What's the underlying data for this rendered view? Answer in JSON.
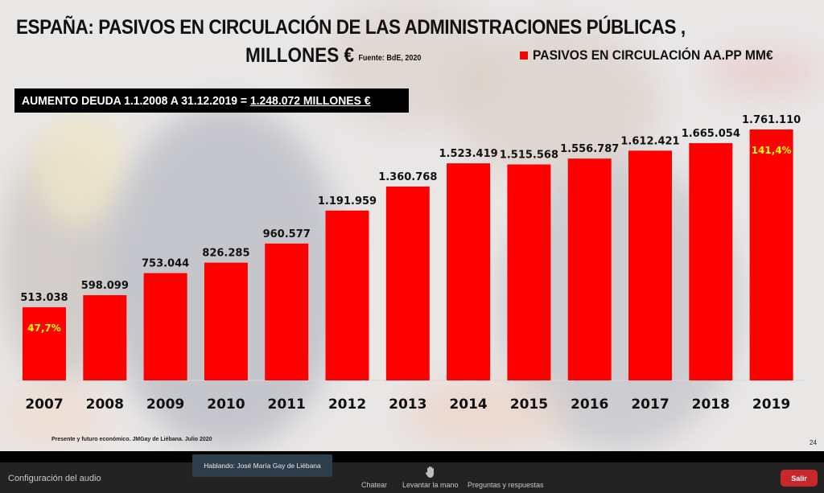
{
  "slide": {
    "title_line1": "ESPAÑA: PASIVOS EN CIRCULACIÓN DE LAS ADMINISTRACIONES PÚBLICAS ,",
    "title_line2": "MILLONES €",
    "source": "Fuente: BdE, 2020",
    "callout_prefix": "AUMENTO DEUDA 1.1.2008 A 31.12.2019 = ",
    "callout_value": "1.248.072 MILLONES €",
    "footnote": "Presente y futuro económico. JMGay de Liébana. Julio 2020",
    "page_number": "24"
  },
  "chart_data": {
    "type": "bar",
    "title": "ESPAÑA: PASIVOS EN CIRCULACIÓN DE LAS ADMINISTRACIONES PÚBLICAS , MILLONES €",
    "xlabel": "",
    "ylabel": "",
    "legend": {
      "label": "PASIVOS EN CIRCULACIÓN AA.PP MM€",
      "position": "top-right",
      "color": "#ff0000"
    },
    "categories": [
      "2007",
      "2008",
      "2009",
      "2010",
      "2011",
      "2012",
      "2013",
      "2014",
      "2015",
      "2016",
      "2017",
      "2018",
      "2019"
    ],
    "series": [
      {
        "name": "PASIVOS EN CIRCULACIÓN AA.PP MM€",
        "color": "#ff0000",
        "values": [
          513038,
          598099,
          753044,
          826285,
          960577,
          1191959,
          1360768,
          1523419,
          1515568,
          1556787,
          1612421,
          1665054,
          1761110
        ],
        "labels": [
          "513.038",
          "598.099",
          "753.044",
          "826.285",
          "960.577",
          "1.191.959",
          "1.360.768",
          "1.523.419",
          "1.515.568",
          "1.556.787",
          "1.612.421",
          "1.665.054",
          "1.761.110"
        ]
      }
    ],
    "annotations": [
      {
        "category": "2007",
        "text": "47,7%",
        "color": "#ffff00"
      },
      {
        "category": "2019",
        "text": "141,4%",
        "color": "#ffff00"
      }
    ],
    "ylim": [
      0,
      1761110
    ],
    "grid": false,
    "y_axis_visible": false
  },
  "meeting": {
    "audio_settings": "Configuración del audio",
    "speaking": "Hablando: José María Gay de Liébana",
    "chat": "Chatear",
    "raise_hand": "Levantar la mano",
    "qa": "Preguntas y respuestas",
    "leave": "Salir",
    "leave_color": "#c8282c"
  }
}
